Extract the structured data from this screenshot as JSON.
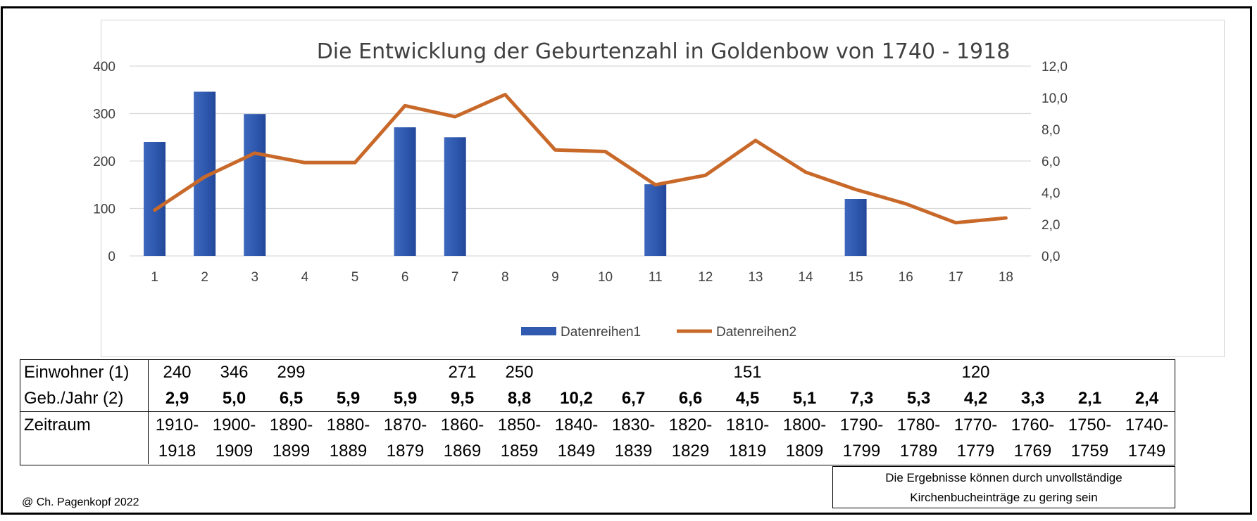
{
  "chart_data": {
    "type": "bar+line",
    "title": "Die Entwicklung der Geburtenzahl in Goldenbow von 1740 - 1918",
    "categories": [
      "1",
      "2",
      "3",
      "4",
      "5",
      "6",
      "7",
      "8",
      "9",
      "10",
      "11",
      "12",
      "13",
      "14",
      "15",
      "16",
      "17",
      "18"
    ],
    "series": [
      {
        "name": "Datenreihen1",
        "type": "bar",
        "axis": "left",
        "color": "#2f5ab0",
        "values": [
          240,
          346,
          299,
          null,
          null,
          271,
          250,
          null,
          null,
          null,
          151,
          null,
          null,
          null,
          120,
          null,
          null,
          null
        ]
      },
      {
        "name": "Datenreihen2",
        "type": "line",
        "axis": "right",
        "color": "#c8692a",
        "values": [
          2.9,
          5.0,
          6.5,
          5.9,
          5.9,
          9.5,
          8.8,
          10.2,
          6.7,
          6.6,
          4.5,
          5.1,
          7.3,
          5.3,
          4.2,
          3.3,
          2.1,
          2.4
        ]
      }
    ],
    "y_left": {
      "ylim": [
        0,
        400
      ],
      "ticks": [
        "0",
        "100",
        "200",
        "300",
        "400"
      ]
    },
    "y_right": {
      "ylim": [
        0,
        12
      ],
      "ticks": [
        "0,0",
        "2,0",
        "4,0",
        "6,0",
        "8,0",
        "10,0",
        "12,0"
      ]
    },
    "grid": true,
    "legend_position": "bottom"
  },
  "table": {
    "row1_label": "Einwohner (1)",
    "row1": [
      "240",
      "346",
      "299",
      "",
      "",
      "271",
      "250",
      "",
      "",
      "",
      "151",
      "",
      "",
      "",
      "120",
      "",
      "",
      ""
    ],
    "row2_label": "Geb./Jahr (2)",
    "row2": [
      "2,9",
      "5,0",
      "6,5",
      "5,9",
      "5,9",
      "9,5",
      "8,8",
      "10,2",
      "6,7",
      "6,6",
      "4,5",
      "5,1",
      "7,3",
      "5,3",
      "4,2",
      "3,3",
      "2,1",
      "2,4"
    ],
    "row3_label": "Zeitraum",
    "row3_top": [
      "1910-",
      "1900-",
      "1890-",
      "1880-",
      "1870-",
      "1860-",
      "1850-",
      "1840-",
      "1830-",
      "1820-",
      "1810-",
      "1800-",
      "1790-",
      "1780-",
      "1770-",
      "1760-",
      "1750-",
      "1740-"
    ],
    "row3_bottom": [
      "1918",
      "1909",
      "1899",
      "1889",
      "1879",
      "1869",
      "1859",
      "1849",
      "1839",
      "1829",
      "1819",
      "1809",
      "1799",
      "1789",
      "1779",
      "1769",
      "1759",
      "1749"
    ]
  },
  "note": {
    "line1": "Die Ergebnisse können durch unvollständige",
    "line2": "Kirchenbucheinträge zu gering sein"
  },
  "copyright": "@ Ch. Pagenkopf 2022"
}
